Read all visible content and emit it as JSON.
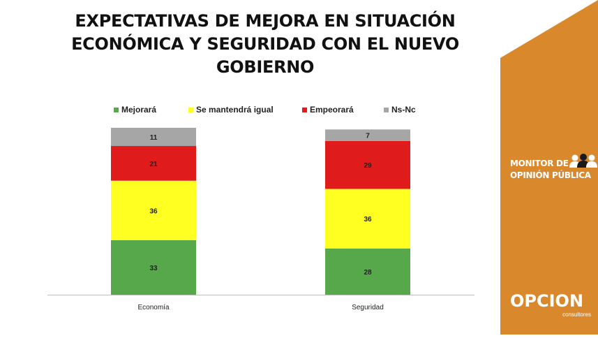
{
  "title_lines": [
    "EXPECTATIVAS DE MEJORA EN SITUACIÓN",
    "ECONÓMICA Y SEGURIDAD CON EL NUEVO",
    "GOBIERNO"
  ],
  "brand": {
    "monitor_line1": "MONITOR DE",
    "monitor_line2": "OPINIÓN PÚBLICA",
    "logo_word": "OPCION",
    "logo_sub": "consultores",
    "accent_color": "#D9892B"
  },
  "chart_data": {
    "type": "bar",
    "stacked": true,
    "categories": [
      "Economía",
      "Seguridad"
    ],
    "series": [
      {
        "name": "Mejorará",
        "values": [
          33,
          28
        ],
        "color": "#56A84A"
      },
      {
        "name": "Se mantendrá igual",
        "values": [
          36,
          36
        ],
        "color": "#FFFF22"
      },
      {
        "name": "Empeorará",
        "values": [
          21,
          29
        ],
        "color": "#E01B1B"
      },
      {
        "name": "Ns-Nc",
        "values": [
          11,
          7
        ],
        "color": "#A6A6A6"
      }
    ],
    "legend_position": "top",
    "grid": false,
    "ylim": [
      0,
      101
    ]
  }
}
